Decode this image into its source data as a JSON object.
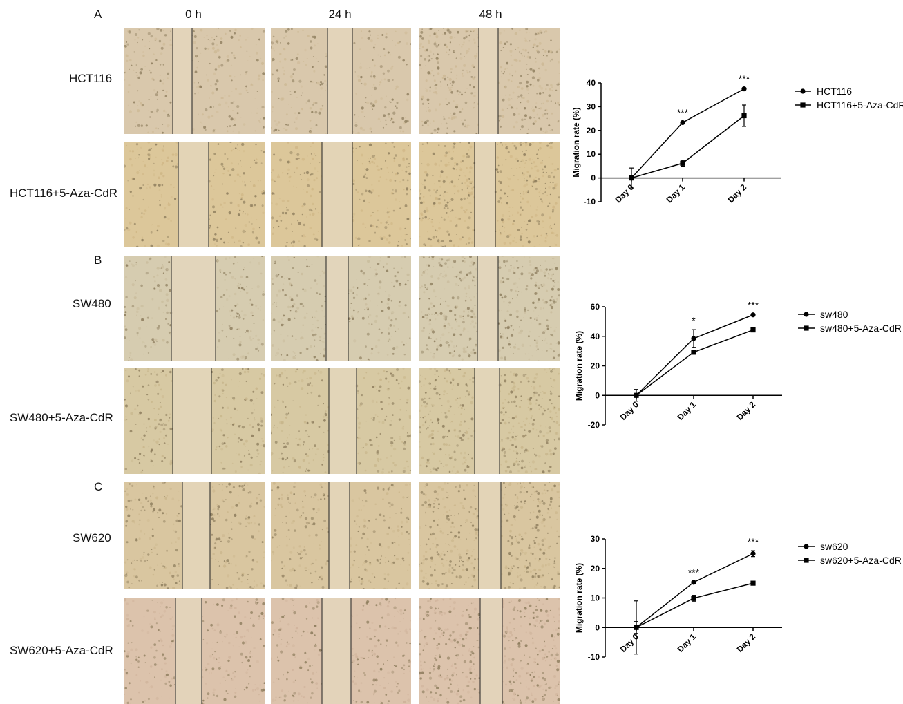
{
  "column_headers": [
    "0 h",
    "24 h",
    "48 h"
  ],
  "panels": [
    {
      "letter": "A",
      "rows": [
        {
          "label": "HCT116"
        },
        {
          "label": "HCT116+5-Aza-CdR"
        }
      ]
    },
    {
      "letter": "B",
      "rows": [
        {
          "label": "SW480"
        },
        {
          "label": "SW480+5-Aza-CdR"
        }
      ]
    },
    {
      "letter": "C",
      "rows": [
        {
          "label": "SW620"
        },
        {
          "label": "SW620+5-Aza-CdR"
        }
      ]
    }
  ],
  "chart_data": [
    {
      "type": "line",
      "categories": [
        "Day 0",
        "Day 1",
        "Day 2"
      ],
      "ylabel": "Migration rate (%)",
      "ylim": [
        -10,
        40
      ],
      "yticks": [
        -10,
        0,
        10,
        20,
        30,
        40
      ],
      "grid": false,
      "legend": "right",
      "series": [
        {
          "name": "HCT116",
          "marker": "circle",
          "values": [
            0,
            23.3,
            37.5
          ],
          "errors": [
            0,
            0.4,
            0.4
          ]
        },
        {
          "name": "HCT116+5-Aza-CdR",
          "marker": "square",
          "values": [
            0,
            6.2,
            26.2
          ],
          "errors": [
            4.2,
            1.2,
            4.5
          ]
        }
      ],
      "significance": [
        "",
        "***",
        "***"
      ]
    },
    {
      "type": "line",
      "categories": [
        "Day 0",
        "Day 1",
        "Day 2"
      ],
      "ylabel": "Migration rate (%)",
      "ylim": [
        -20,
        60
      ],
      "yticks": [
        -20,
        0,
        20,
        40,
        60
      ],
      "grid": false,
      "legend": "right",
      "series": [
        {
          "name": "sw480",
          "marker": "circle",
          "values": [
            0,
            38.5,
            54.5
          ],
          "errors": [
            0,
            6.0,
            0.6
          ]
        },
        {
          "name": "sw480+5-Aza-CdR",
          "marker": "square",
          "values": [
            0,
            29.2,
            44.3
          ],
          "errors": [
            4.0,
            0.6,
            0.6
          ]
        }
      ],
      "significance": [
        "",
        "*",
        "***"
      ]
    },
    {
      "type": "line",
      "categories": [
        "Day 0",
        "Day 1",
        "Day 2"
      ],
      "ylabel": "Migration rate (%)",
      "ylim": [
        -10,
        30
      ],
      "yticks": [
        -10,
        0,
        10,
        20,
        30
      ],
      "grid": false,
      "legend": "right",
      "series": [
        {
          "name": "sw620",
          "marker": "circle",
          "values": [
            0,
            15.3,
            25.0
          ],
          "errors": [
            9.0,
            0.3,
            1.0
          ]
        },
        {
          "name": "sw620+5-Aza-CdR",
          "marker": "square",
          "values": [
            0,
            9.9,
            15.0
          ],
          "errors": [
            2.0,
            1.0,
            0.3
          ]
        }
      ],
      "significance": [
        "",
        "***",
        "***"
      ]
    }
  ]
}
